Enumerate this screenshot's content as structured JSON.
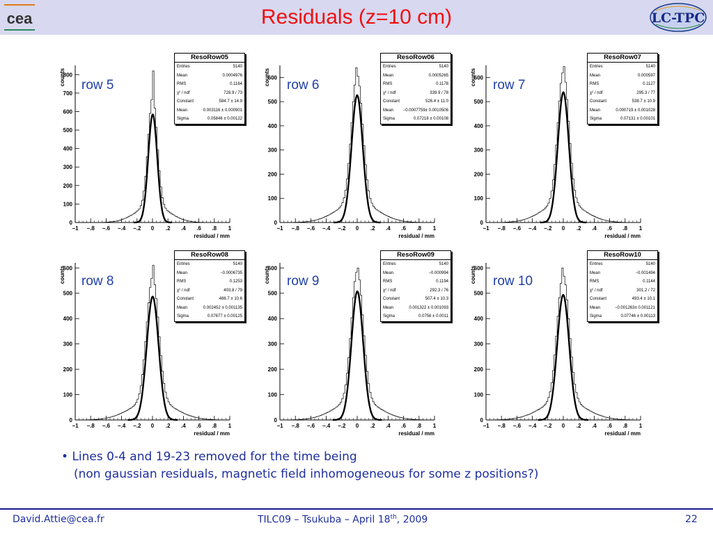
{
  "header": {
    "title": "Residuals (z=10 cm)",
    "background": "#d8d8f0",
    "title_color": "#ee1111"
  },
  "logos": {
    "left": "cea",
    "right": "LC-TPC"
  },
  "chart_data": [
    {
      "type": "histogram",
      "panel_label": "row 5",
      "stats": {
        "name": "ResoRow05",
        "entries": "5140",
        "mean": "0.0004976",
        "rms": "0.1164",
        "chi2_ndf": "728.9 / 73",
        "constant": "584.7 ± 14.9",
        "fit_mean": "0.003116 ± 0.000901",
        "sigma": "0.05846 ± 0.00122"
      },
      "xlabel": "residual / mm",
      "ylabel": "counts",
      "xlim": [
        -1,
        1
      ],
      "ylim": [
        0,
        850
      ],
      "xticks": [
        -1,
        -0.8,
        -0.6,
        -0.4,
        -0.2,
        0,
        0.2,
        0.4,
        0.6,
        0.8,
        1
      ],
      "yticks": [
        0,
        100,
        200,
        300,
        400,
        500,
        600,
        700,
        800
      ],
      "histogram": {
        "bin_width": 0.02,
        "peak_bin_value": 820
      },
      "fit": {
        "constant": 584.7,
        "mean": 0.003116,
        "sigma": 0.05846
      }
    },
    {
      "type": "histogram",
      "panel_label": "row 6",
      "stats": {
        "name": "ResoRow06",
        "entries": "5140",
        "mean": "0.0005265",
        "rms": "0.1178",
        "chi2_ndf": "339.9 / 78",
        "constant": "526.4 ± 11.0",
        "fit_mean": "−0.0007759± 0.0010506",
        "sigma": "0.07218 ± 0.00108"
      },
      "xlabel": "residual / mm",
      "ylabel": "counts",
      "xlim": [
        -1,
        1
      ],
      "ylim": [
        0,
        650
      ],
      "xticks": [
        -1,
        -0.8,
        -0.6,
        -0.4,
        -0.2,
        0,
        0.2,
        0.4,
        0.6,
        0.8,
        1
      ],
      "yticks": [
        0,
        100,
        200,
        300,
        400,
        500,
        600
      ],
      "histogram": {
        "bin_width": 0.02,
        "peak_bin_value": 640
      },
      "fit": {
        "constant": 526.4,
        "mean": -0.0007759,
        "sigma": 0.07218
      }
    },
    {
      "type": "histogram",
      "panel_label": "row 7",
      "stats": {
        "name": "ResoRow07",
        "entries": "5140",
        "mean": "0.000597",
        "rms": "0.1127",
        "chi2_ndf": "295.3 / 77",
        "constant": "538.7 ± 10.9",
        "fit_mean": "0.000719 ± 0.001028",
        "sigma": "0.07131 ± 0.00101"
      },
      "xlabel": "residual / mm",
      "ylabel": "counts",
      "xlim": [
        -1,
        1
      ],
      "ylim": [
        0,
        650
      ],
      "xticks": [
        -1,
        -0.8,
        -0.6,
        -0.4,
        -0.2,
        0,
        0.2,
        0.4,
        0.6,
        0.8,
        1
      ],
      "yticks": [
        0,
        100,
        200,
        300,
        400,
        500,
        600
      ],
      "histogram": {
        "bin_width": 0.02,
        "peak_bin_value": 645
      },
      "fit": {
        "constant": 538.7,
        "mean": 0.000719,
        "sigma": 0.07131
      }
    },
    {
      "type": "histogram",
      "panel_label": "row 8",
      "stats": {
        "name": "ResoRow08",
        "entries": "5140",
        "mean": "−0.0006735",
        "rms": "0.1253",
        "chi2_ndf": "403.8 / 79",
        "constant": "486.7 ± 10.6",
        "fit_mean": "0.002452 ± 0.001135",
        "sigma": "0.07677 ± 0.00125"
      },
      "xlabel": "residual / mm",
      "ylabel": "counts",
      "xlim": [
        -1,
        1
      ],
      "ylim": [
        0,
        620
      ],
      "xticks": [
        -1,
        -0.8,
        -0.6,
        -0.4,
        -0.2,
        0,
        0.2,
        0.4,
        0.6,
        0.8,
        1
      ],
      "yticks": [
        0,
        100,
        200,
        300,
        400,
        500,
        600
      ],
      "histogram": {
        "bin_width": 0.02,
        "peak_bin_value": 610
      },
      "fit": {
        "constant": 486.7,
        "mean": 0.002452,
        "sigma": 0.07677
      }
    },
    {
      "type": "histogram",
      "panel_label": "row 9",
      "stats": {
        "name": "ResoRow09",
        "entries": "5140",
        "mean": "−0.000994",
        "rms": "0.1194",
        "chi2_ndf": "292.3 / 76",
        "constant": "507.4 ± 10.3",
        "fit_mean": "0.001322 ± 0.001093",
        "sigma": "0.0756 ± 0.0011"
      },
      "xlabel": "residual / mm",
      "ylabel": "counts",
      "xlim": [
        -1,
        1
      ],
      "ylim": [
        0,
        620
      ],
      "xticks": [
        -1,
        -0.8,
        -0.6,
        -0.4,
        -0.2,
        0,
        0.2,
        0.4,
        0.6,
        0.8,
        1
      ],
      "yticks": [
        0,
        100,
        200,
        300,
        400,
        500,
        600
      ],
      "histogram": {
        "bin_width": 0.02,
        "peak_bin_value": 600
      },
      "fit": {
        "constant": 507.4,
        "mean": 0.001322,
        "sigma": 0.0756
      }
    },
    {
      "type": "histogram",
      "panel_label": "row 10",
      "stats": {
        "name": "ResoRow10",
        "entries": "5140",
        "mean": "−0.001494",
        "rms": "0.1144",
        "chi2_ndf": "301.2 / 72",
        "constant": "493.4 ± 10.1",
        "fit_mean": "−0.001263± 0.001121",
        "sigma": "0.07746 ± 0.00113"
      },
      "xlabel": "residual / mm",
      "ylabel": "counts",
      "xlim": [
        -1,
        1
      ],
      "ylim": [
        0,
        620
      ],
      "xticks": [
        -1,
        -0.8,
        -0.6,
        -0.4,
        -0.2,
        0,
        0.2,
        0.4,
        0.6,
        0.8,
        1
      ],
      "yticks": [
        0,
        100,
        200,
        300,
        400,
        500,
        600
      ],
      "histogram": {
        "bin_width": 0.02,
        "peak_bin_value": 600
      },
      "fit": {
        "constant": 493.4,
        "mean": -0.001263,
        "sigma": 0.07746
      }
    }
  ],
  "stats_labels": {
    "entries": "Entries",
    "mean": "Mean",
    "rms": "RMS",
    "chi2_ndf": "χ² / ndf",
    "constant": "Constant",
    "fit_mean": "Mean",
    "sigma": "Sigma"
  },
  "bullet": {
    "line1": "Lines 0-4 and 19-23 removed for the time being",
    "line2": "(non gaussian residuals, magnetic field inhomogeneous for some z positions?)"
  },
  "footer": {
    "author": "David.Attie@cea.fr",
    "event": "TILC09 – Tsukuba – April 18",
    "event_sup": "th",
    "event_year": ", 2009",
    "page": "22"
  },
  "colors": {
    "accent_blue": "#1f2f9e",
    "label_blue": "#1f3fa8",
    "rule": "#1a1a8a"
  }
}
